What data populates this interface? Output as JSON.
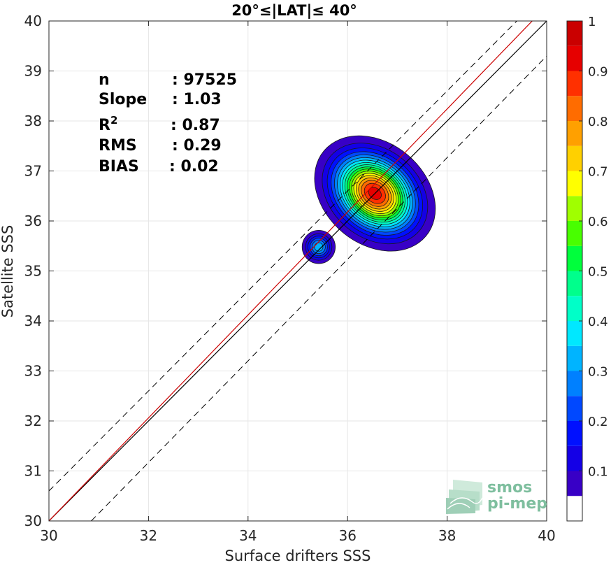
{
  "chart_data": {
    "type": "contour",
    "title": "20°≤|LAT|≤ 40°",
    "xlabel": "Surface drifters SSS",
    "ylabel": "Satellite SSS",
    "xlim": [
      30,
      40
    ],
    "ylim": [
      30,
      40
    ],
    "xticks": [
      "30",
      "32",
      "34",
      "36",
      "38",
      "40"
    ],
    "yticks": [
      "30",
      "31",
      "32",
      "33",
      "34",
      "35",
      "36",
      "37",
      "38",
      "39",
      "40"
    ],
    "grid": true,
    "stats": [
      {
        "label": "n",
        "value": ": 97525"
      },
      {
        "label": "Slope",
        "value": ": 1.03"
      },
      {
        "label": "R",
        "sup": "2",
        "value": ": 0.87"
      },
      {
        "label": "RMS",
        "value": ": 0.29"
      },
      {
        "label": "BIAS",
        "value": ": 0.02"
      }
    ],
    "reference_lines": [
      {
        "name": "one-to-one",
        "x": [
          30,
          40
        ],
        "y": [
          30,
          40
        ],
        "color": "#000000",
        "style": "solid"
      },
      {
        "name": "regression",
        "x": [
          30,
          40
        ],
        "y": [
          30.0,
          40.3
        ],
        "color": "#cc0000",
        "style": "solid"
      },
      {
        "name": "upper-bound",
        "x": [
          30,
          39.4
        ],
        "y": [
          30.6,
          40
        ],
        "color": "#000000",
        "style": "dashed"
      },
      {
        "name": "lower-bound",
        "x": [
          30.85,
          40
        ],
        "y": [
          30,
          39.3
        ],
        "color": "#000000",
        "style": "dashed"
      }
    ],
    "density_clusters": [
      {
        "center": [
          36.55,
          36.55
        ],
        "sx": 0.42,
        "sy": 0.55,
        "rot_deg": 50,
        "peak": 0.93
      },
      {
        "center": [
          35.42,
          35.48
        ],
        "sx": 0.17,
        "sy": 0.17,
        "rot_deg": 0,
        "peak": 0.34
      }
    ],
    "colorbar": {
      "range": [
        0,
        1
      ],
      "levels": 20,
      "ticks": [
        "0.1",
        "0.2",
        "0.3",
        "0.4",
        "0.5",
        "0.6",
        "0.7",
        "0.8",
        "0.9",
        "1"
      ],
      "colors": [
        "#ffffff",
        "#5c00a6",
        "#3800c6",
        "#1400e6",
        "#0010ff",
        "#0048ff",
        "#0080ff",
        "#00b4ff",
        "#00e8ff",
        "#00ffc8",
        "#00ff8c",
        "#00ff3c",
        "#48ff00",
        "#a0ff00",
        "#ffff00",
        "#ffd000",
        "#ffa000",
        "#ff6c00",
        "#ff3000",
        "#e60000",
        "#ca0000",
        "#8b0000"
      ]
    }
  },
  "logo": {
    "line1": "smos",
    "line2": "pi-mep",
    "color": "#7fbf9f"
  }
}
